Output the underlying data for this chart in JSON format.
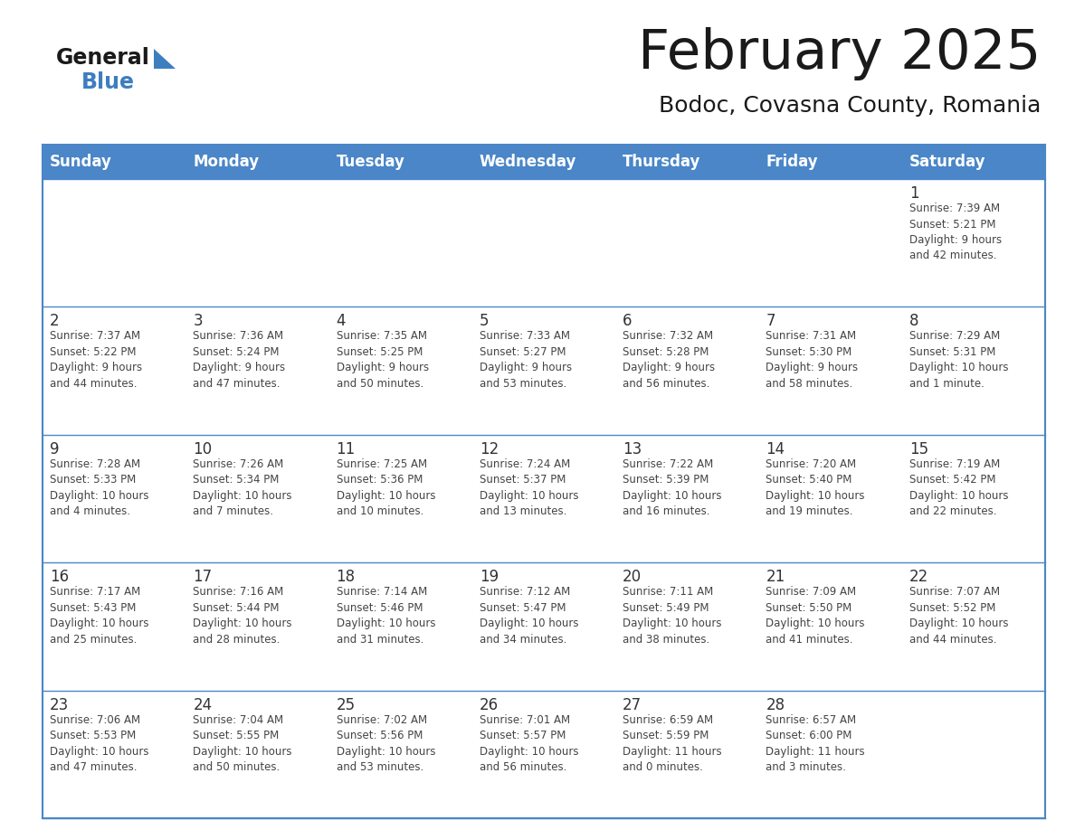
{
  "title": "February 2025",
  "subtitle": "Bodoc, Covasna County, Romania",
  "header_bg_color": "#4a86c8",
  "header_text_color": "#ffffff",
  "grid_color": "#4a86c8",
  "title_color": "#1a1a1a",
  "subtitle_color": "#1a1a1a",
  "cell_text_color": "#444444",
  "day_num_color": "#333333",
  "days_of_week": [
    "Sunday",
    "Monday",
    "Tuesday",
    "Wednesday",
    "Thursday",
    "Friday",
    "Saturday"
  ],
  "weeks": [
    [
      {
        "day": "",
        "info": ""
      },
      {
        "day": "",
        "info": ""
      },
      {
        "day": "",
        "info": ""
      },
      {
        "day": "",
        "info": ""
      },
      {
        "day": "",
        "info": ""
      },
      {
        "day": "",
        "info": ""
      },
      {
        "day": "1",
        "info": "Sunrise: 7:39 AM\nSunset: 5:21 PM\nDaylight: 9 hours\nand 42 minutes."
      }
    ],
    [
      {
        "day": "2",
        "info": "Sunrise: 7:37 AM\nSunset: 5:22 PM\nDaylight: 9 hours\nand 44 minutes."
      },
      {
        "day": "3",
        "info": "Sunrise: 7:36 AM\nSunset: 5:24 PM\nDaylight: 9 hours\nand 47 minutes."
      },
      {
        "day": "4",
        "info": "Sunrise: 7:35 AM\nSunset: 5:25 PM\nDaylight: 9 hours\nand 50 minutes."
      },
      {
        "day": "5",
        "info": "Sunrise: 7:33 AM\nSunset: 5:27 PM\nDaylight: 9 hours\nand 53 minutes."
      },
      {
        "day": "6",
        "info": "Sunrise: 7:32 AM\nSunset: 5:28 PM\nDaylight: 9 hours\nand 56 minutes."
      },
      {
        "day": "7",
        "info": "Sunrise: 7:31 AM\nSunset: 5:30 PM\nDaylight: 9 hours\nand 58 minutes."
      },
      {
        "day": "8",
        "info": "Sunrise: 7:29 AM\nSunset: 5:31 PM\nDaylight: 10 hours\nand 1 minute."
      }
    ],
    [
      {
        "day": "9",
        "info": "Sunrise: 7:28 AM\nSunset: 5:33 PM\nDaylight: 10 hours\nand 4 minutes."
      },
      {
        "day": "10",
        "info": "Sunrise: 7:26 AM\nSunset: 5:34 PM\nDaylight: 10 hours\nand 7 minutes."
      },
      {
        "day": "11",
        "info": "Sunrise: 7:25 AM\nSunset: 5:36 PM\nDaylight: 10 hours\nand 10 minutes."
      },
      {
        "day": "12",
        "info": "Sunrise: 7:24 AM\nSunset: 5:37 PM\nDaylight: 10 hours\nand 13 minutes."
      },
      {
        "day": "13",
        "info": "Sunrise: 7:22 AM\nSunset: 5:39 PM\nDaylight: 10 hours\nand 16 minutes."
      },
      {
        "day": "14",
        "info": "Sunrise: 7:20 AM\nSunset: 5:40 PM\nDaylight: 10 hours\nand 19 minutes."
      },
      {
        "day": "15",
        "info": "Sunrise: 7:19 AM\nSunset: 5:42 PM\nDaylight: 10 hours\nand 22 minutes."
      }
    ],
    [
      {
        "day": "16",
        "info": "Sunrise: 7:17 AM\nSunset: 5:43 PM\nDaylight: 10 hours\nand 25 minutes."
      },
      {
        "day": "17",
        "info": "Sunrise: 7:16 AM\nSunset: 5:44 PM\nDaylight: 10 hours\nand 28 minutes."
      },
      {
        "day": "18",
        "info": "Sunrise: 7:14 AM\nSunset: 5:46 PM\nDaylight: 10 hours\nand 31 minutes."
      },
      {
        "day": "19",
        "info": "Sunrise: 7:12 AM\nSunset: 5:47 PM\nDaylight: 10 hours\nand 34 minutes."
      },
      {
        "day": "20",
        "info": "Sunrise: 7:11 AM\nSunset: 5:49 PM\nDaylight: 10 hours\nand 38 minutes."
      },
      {
        "day": "21",
        "info": "Sunrise: 7:09 AM\nSunset: 5:50 PM\nDaylight: 10 hours\nand 41 minutes."
      },
      {
        "day": "22",
        "info": "Sunrise: 7:07 AM\nSunset: 5:52 PM\nDaylight: 10 hours\nand 44 minutes."
      }
    ],
    [
      {
        "day": "23",
        "info": "Sunrise: 7:06 AM\nSunset: 5:53 PM\nDaylight: 10 hours\nand 47 minutes."
      },
      {
        "day": "24",
        "info": "Sunrise: 7:04 AM\nSunset: 5:55 PM\nDaylight: 10 hours\nand 50 minutes."
      },
      {
        "day": "25",
        "info": "Sunrise: 7:02 AM\nSunset: 5:56 PM\nDaylight: 10 hours\nand 53 minutes."
      },
      {
        "day": "26",
        "info": "Sunrise: 7:01 AM\nSunset: 5:57 PM\nDaylight: 10 hours\nand 56 minutes."
      },
      {
        "day": "27",
        "info": "Sunrise: 6:59 AM\nSunset: 5:59 PM\nDaylight: 11 hours\nand 0 minutes."
      },
      {
        "day": "28",
        "info": "Sunrise: 6:57 AM\nSunset: 6:00 PM\nDaylight: 11 hours\nand 3 minutes."
      },
      {
        "day": "",
        "info": ""
      }
    ]
  ]
}
